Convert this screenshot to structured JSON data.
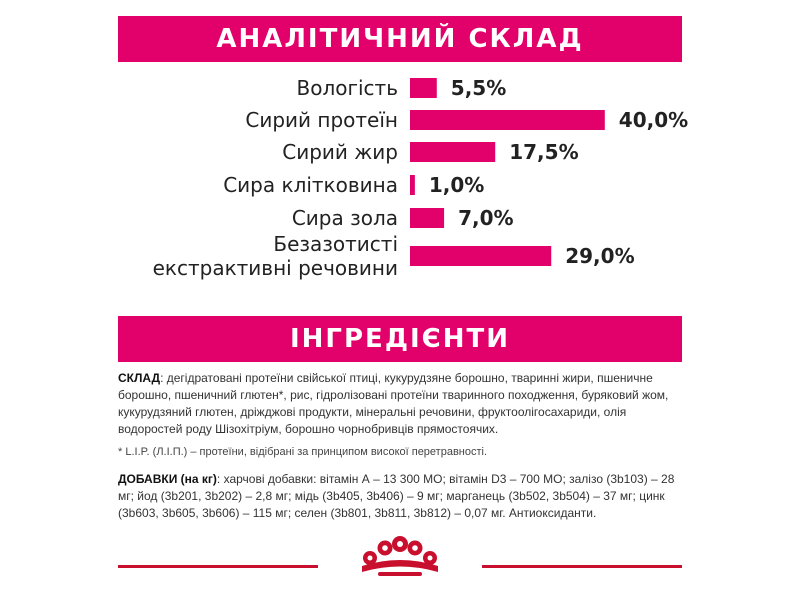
{
  "colors": {
    "accent": "#e2006a",
    "crown": "#c8102e"
  },
  "sections": {
    "analysis_title": "АНАЛІТИЧНИЙ СКЛАД",
    "ingredients_title": "ІНГРЕДІЄНТИ"
  },
  "chart_data": {
    "type": "bar",
    "orientation": "horizontal",
    "title": "АНАЛІТИЧНИЙ СКЛАД",
    "categories": [
      "Вологість",
      "Сирий протеїн",
      "Сирий жир",
      "Сира клітковина",
      "Сира зола",
      "Безазотисті екстрактивні речовини"
    ],
    "category_lines": [
      [
        "Вологість"
      ],
      [
        "Сирий протеїн"
      ],
      [
        "Сирий жир"
      ],
      [
        "Сира клітковина"
      ],
      [
        "Сира зола"
      ],
      [
        "Безазотисті",
        "екстрактивні речовини"
      ]
    ],
    "values": [
      5.5,
      40.0,
      17.5,
      1.0,
      7.0,
      29.0
    ],
    "value_labels": [
      "5,5%",
      "40,0%",
      "17,5%",
      "1,0%",
      "7,0%",
      "29,0%"
    ],
    "unit": "%",
    "grid": false
  },
  "ingredients": {
    "composition_label": "СКЛАД",
    "composition_text": ": дегідратовані протеїни свійської птиці, кукурудзяне борошно, тваринні жири, пшеничне борошно, пшеничний глютен*, рис, гідролізовані протеїни тваринного походження, буряковий жом, кукурудзяний глютен, дріжджові продукти, мінеральні речовини, фруктоолігосахариди, олія водоростей роду Шізохітріум, борошно чорнобривців прямостоячих.",
    "note": "* L.I.P. (Л.І.П.) – протеїни, відібрані за принципом високої перетравності.",
    "additives_label": "ДОБАВКИ (на кг)",
    "additives_text": ": харчові добавки: вітамін А – 13 300 МО; вітамін D3 – 700 МО; залізо (3b103) – 28 мг; йод (3b201, 3b202) – 2,8 мг; мідь (3b405, 3b406) – 9 мг; марганець (3b502, 3b504) – 37 мг; цинк (3b603, 3b605, 3b606) – 115 мг; селен (3b801, 3b811, 3b812) – 0,07 мг. Антиоксиданти."
  },
  "footer": {
    "logo_icon": "royal-canin-crown-icon"
  }
}
